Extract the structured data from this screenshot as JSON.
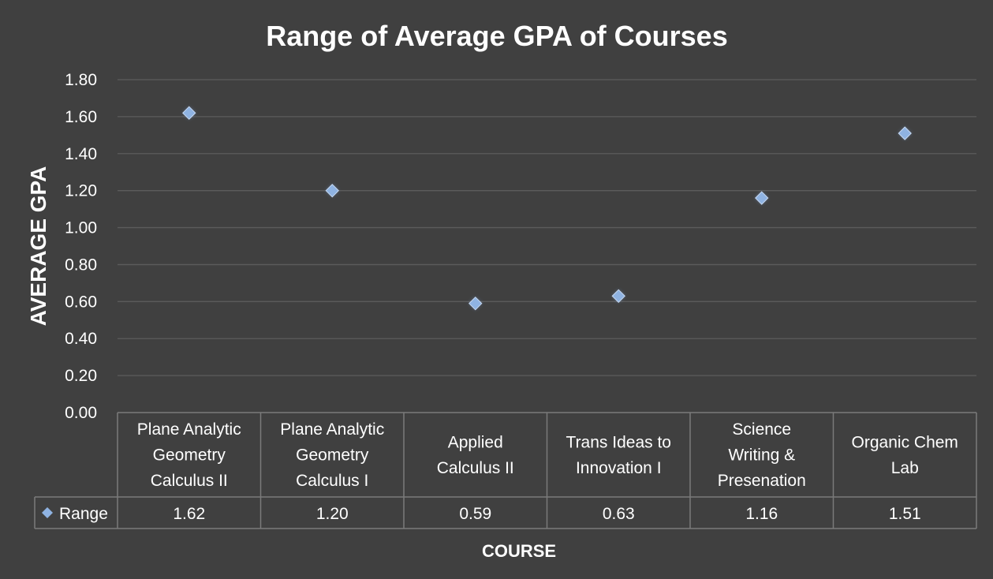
{
  "chart_data": {
    "type": "scatter",
    "title": "Range of Average GPA of Courses",
    "xlabel": "COURSE",
    "ylabel": "AVERAGE GPA",
    "ylim": [
      0,
      1.8
    ],
    "yticks": [
      "0.00",
      "0.20",
      "0.40",
      "0.60",
      "0.80",
      "1.00",
      "1.20",
      "1.40",
      "1.60",
      "1.80"
    ],
    "ytick_values": [
      0,
      0.2,
      0.4,
      0.6,
      0.8,
      1.0,
      1.2,
      1.4,
      1.6,
      1.8
    ],
    "grid": true,
    "categories": [
      [
        "Plane Analytic",
        "Geometry",
        "Calculus II"
      ],
      [
        "Plane Analytic",
        "Geometry",
        "Calculus I"
      ],
      [
        "Applied",
        "Calculus II"
      ],
      [
        "Trans Ideas to",
        "Innovation I"
      ],
      [
        "Science",
        "Writing &",
        "Presenation"
      ],
      [
        "Organic Chem",
        "Lab"
      ]
    ],
    "series": [
      {
        "name": "Range",
        "values": [
          1.62,
          1.2,
          0.59,
          0.63,
          1.16,
          1.51
        ],
        "labels": [
          "1.62",
          "1.20",
          "0.59",
          "0.63",
          "1.16",
          "1.51"
        ],
        "color": "#8fb3e2"
      }
    ],
    "data_table": true
  }
}
